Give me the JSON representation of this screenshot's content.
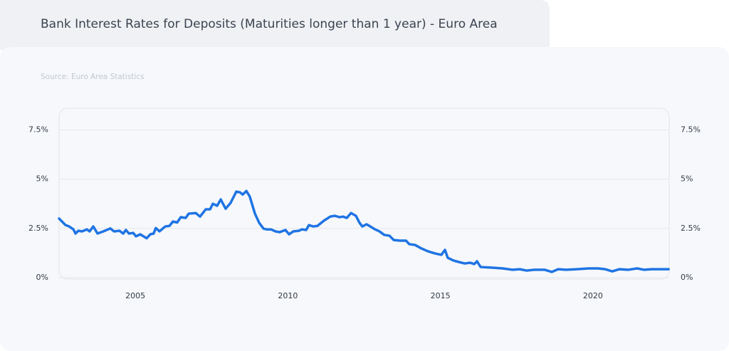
{
  "chart_data": {
    "type": "line",
    "title": "Bank Interest Rates for Deposits (Maturities longer than 1 year) - Euro Area",
    "source": "Source: Euro Area Statistics",
    "color": "#1f74e3",
    "grid": true,
    "xlim": [
      2002.5,
      2022.5
    ],
    "xticks": [
      2005,
      2010,
      2015,
      2020
    ],
    "ylim": [
      0,
      8.6
    ],
    "yticks": [
      {
        "value": 0,
        "label": "0%"
      },
      {
        "value": 2.5,
        "label": "2.5%"
      },
      {
        "value": 5,
        "label": "5%"
      },
      {
        "value": 7.5,
        "label": "7.5%"
      }
    ],
    "y2lim": [
      0,
      8.6
    ],
    "y2ticks": [
      {
        "value": 0,
        "label": "0%"
      },
      {
        "value": 2.5,
        "label": "2.5%"
      },
      {
        "value": 5,
        "label": "5%"
      },
      {
        "value": 7.5,
        "label": "7.5%"
      }
    ],
    "x": [
      2002.5,
      2002.71,
      2002.83,
      2002.97,
      2003.04,
      2003.13,
      2003.25,
      2003.41,
      2003.5,
      2003.62,
      2003.76,
      2003.95,
      2004.18,
      2004.3,
      2004.48,
      2004.6,
      2004.69,
      2004.79,
      2004.93,
      2005.02,
      2005.16,
      2005.37,
      2005.49,
      2005.6,
      2005.67,
      2005.79,
      2005.98,
      2006.12,
      2006.23,
      2006.37,
      2006.49,
      2006.65,
      2006.75,
      2006.98,
      2007.12,
      2007.31,
      2007.45,
      2007.54,
      2007.68,
      2007.8,
      2007.96,
      2008.12,
      2008.31,
      2008.43,
      2008.52,
      2008.64,
      2008.75,
      2008.92,
      2009.06,
      2009.2,
      2009.31,
      2009.45,
      2009.59,
      2009.73,
      2009.85,
      2009.92,
      2010.04,
      2010.18,
      2010.36,
      2010.46,
      2010.6,
      2010.69,
      2010.83,
      2010.97,
      2011.18,
      2011.39,
      2011.53,
      2011.7,
      2011.81,
      2011.93,
      2012.07,
      2012.23,
      2012.35,
      2012.44,
      2012.58,
      2012.7,
      2012.86,
      2013.0,
      2013.16,
      2013.33,
      2013.47,
      2013.68,
      2013.87,
      2013.98,
      2014.17,
      2014.38,
      2014.59,
      2014.82,
      2015.03,
      2015.15,
      2015.24,
      2015.43,
      2015.62,
      2015.8,
      2015.97,
      2016.11,
      2016.2,
      2016.32,
      2016.67,
      2017.04,
      2017.37,
      2017.6,
      2017.83,
      2018.07,
      2018.42,
      2018.65,
      2018.86,
      2019.12,
      2019.47,
      2019.86,
      2020.17,
      2020.4,
      2020.63,
      2020.87,
      2021.15,
      2021.45,
      2021.68,
      2021.92,
      2022.27,
      2022.48
    ],
    "values": [
      3.0,
      2.67,
      2.6,
      2.45,
      2.24,
      2.38,
      2.35,
      2.45,
      2.35,
      2.6,
      2.24,
      2.35,
      2.5,
      2.35,
      2.38,
      2.24,
      2.42,
      2.24,
      2.27,
      2.1,
      2.2,
      2.0,
      2.2,
      2.24,
      2.52,
      2.35,
      2.6,
      2.63,
      2.85,
      2.8,
      3.07,
      3.03,
      3.25,
      3.28,
      3.1,
      3.47,
      3.47,
      3.75,
      3.65,
      3.97,
      3.5,
      3.79,
      4.37,
      4.33,
      4.22,
      4.4,
      4.12,
      3.25,
      2.78,
      2.49,
      2.45,
      2.45,
      2.35,
      2.31,
      2.38,
      2.42,
      2.2,
      2.35,
      2.38,
      2.45,
      2.42,
      2.67,
      2.6,
      2.63,
      2.89,
      3.1,
      3.14,
      3.07,
      3.1,
      3.03,
      3.28,
      3.14,
      2.78,
      2.6,
      2.71,
      2.6,
      2.45,
      2.35,
      2.17,
      2.13,
      1.91,
      1.88,
      1.88,
      1.7,
      1.66,
      1.48,
      1.34,
      1.23,
      1.16,
      1.41,
      1.01,
      0.87,
      0.79,
      0.72,
      0.76,
      0.69,
      0.83,
      0.54,
      0.51,
      0.47,
      0.4,
      0.43,
      0.36,
      0.4,
      0.4,
      0.29,
      0.43,
      0.4,
      0.43,
      0.47,
      0.47,
      0.43,
      0.32,
      0.43,
      0.4,
      0.47,
      0.4,
      0.43,
      0.43,
      0.43
    ]
  }
}
